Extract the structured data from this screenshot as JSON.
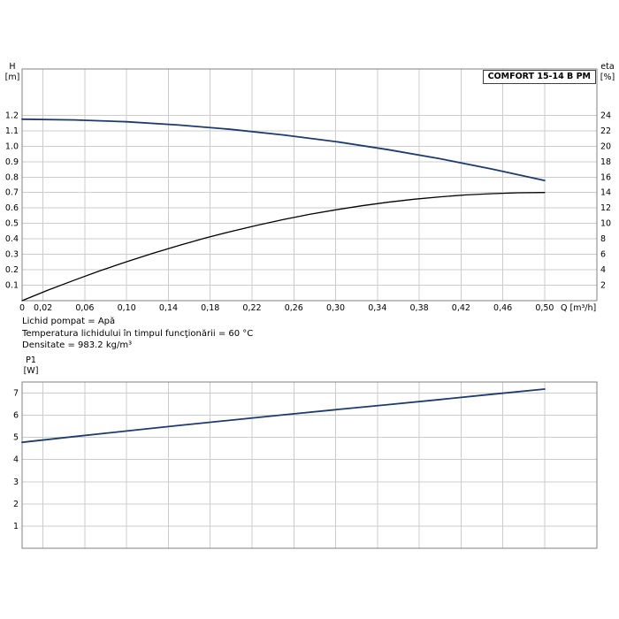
{
  "pump_model_label": "COMFORT 15-14 B PM",
  "colors": {
    "curve_blue": "#1e3a6e",
    "curve_black": "#000000",
    "grid": "#cccccc",
    "frame": "#808080",
    "text": "#000000"
  },
  "info": {
    "lines": [
      "Lichid pompat = Apă",
      "Temperatura lichidului în timpul funcţionării = 60 °C",
      "Densitate = 983.2 kg/m³"
    ]
  },
  "chart_data": [
    {
      "type": "line",
      "title": "COMFORT 15-14 B PM",
      "xlabel": "Q [m³/h]",
      "ylabel_left_lines": [
        "H",
        "[m]"
      ],
      "ylabel_right_lines": [
        "eta",
        "[%]"
      ],
      "xlim": [
        0,
        0.55
      ],
      "ylim_left": [
        0,
        1.5
      ],
      "ylim_right": [
        0,
        30
      ],
      "grid": true,
      "legend": "none",
      "x_ticks": [
        0,
        0.02,
        0.06,
        0.1,
        0.14,
        0.18,
        0.22,
        0.26,
        0.3,
        0.34,
        0.38,
        0.42,
        0.46,
        0.5
      ],
      "x_tick_labels": [
        "0",
        "0,02",
        "0,06",
        "0,10",
        "0,14",
        "0,18",
        "0,22",
        "0,26",
        "0,30",
        "0,34",
        "0,38",
        "0,42",
        "0,46",
        "0,50"
      ],
      "y_ticks_left": [
        0.1,
        0.2,
        0.3,
        0.4,
        0.5,
        0.6,
        0.7,
        0.8,
        0.9,
        1.0,
        1.1,
        1.2
      ],
      "y_tick_labels_left": [
        "0.1",
        "0.2",
        "0.3",
        "0.4",
        "0.5",
        "0.6",
        "0.7",
        "0.8",
        "0.9",
        "1.0",
        "1.1",
        "1.2"
      ],
      "y_ticks_right": [
        2,
        4,
        6,
        8,
        10,
        12,
        14,
        16,
        18,
        20,
        22,
        24
      ],
      "y_tick_labels_right": [
        "2",
        "4",
        "6",
        "8",
        "10",
        "12",
        "14",
        "16",
        "18",
        "20",
        "22",
        "24"
      ],
      "series": [
        {
          "name": "H-Q pump curve",
          "axis": "left",
          "color": "#1e3a6e",
          "stroke_width": 1.8,
          "x": [
            0,
            0.05,
            0.1,
            0.15,
            0.2,
            0.25,
            0.3,
            0.35,
            0.4,
            0.45,
            0.5
          ],
          "y": [
            1.175,
            1.17,
            1.158,
            1.137,
            1.109,
            1.073,
            1.03,
            0.978,
            0.919,
            0.852,
            0.778
          ]
        },
        {
          "name": "eta efficiency curve",
          "axis": "right",
          "color": "#000000",
          "stroke_width": 1.3,
          "x": [
            0,
            0.025,
            0.05,
            0.075,
            0.1,
            0.125,
            0.15,
            0.175,
            0.2,
            0.225,
            0.25,
            0.275,
            0.3,
            0.325,
            0.35,
            0.375,
            0.4,
            0.425,
            0.45,
            0.475,
            0.5
          ],
          "y": [
            0,
            1.37,
            2.66,
            3.89,
            5.04,
            6.13,
            7.14,
            8.09,
            8.96,
            9.77,
            10.5,
            11.17,
            11.76,
            12.29,
            12.74,
            13.13,
            13.44,
            13.69,
            13.86,
            13.97,
            14.0
          ]
        }
      ]
    },
    {
      "type": "line",
      "title": "",
      "xlabel": "",
      "ylabel_left_lines": [
        "P1",
        "[W]"
      ],
      "xlim": [
        0,
        0.55
      ],
      "ylim_left": [
        0,
        7.5
      ],
      "grid": true,
      "legend": "none",
      "x_ticks": [
        0,
        0.02,
        0.06,
        0.1,
        0.14,
        0.18,
        0.22,
        0.26,
        0.3,
        0.34,
        0.38,
        0.42,
        0.46,
        0.5
      ],
      "x_tick_labels": null,
      "y_ticks_left": [
        1,
        2,
        3,
        4,
        5,
        6,
        7
      ],
      "y_tick_labels_left": [
        "1",
        "2",
        "3",
        "4",
        "5",
        "6",
        "7"
      ],
      "series": [
        {
          "name": "P1 power curve",
          "axis": "left",
          "color": "#1e3a6e",
          "stroke_width": 1.8,
          "x": [
            0,
            0.05,
            0.1,
            0.15,
            0.2,
            0.25,
            0.3,
            0.35,
            0.4,
            0.45,
            0.5
          ],
          "y": [
            4.78,
            5.04,
            5.29,
            5.54,
            5.78,
            6.02,
            6.25,
            6.48,
            6.71,
            6.95,
            7.18
          ]
        }
      ]
    }
  ]
}
